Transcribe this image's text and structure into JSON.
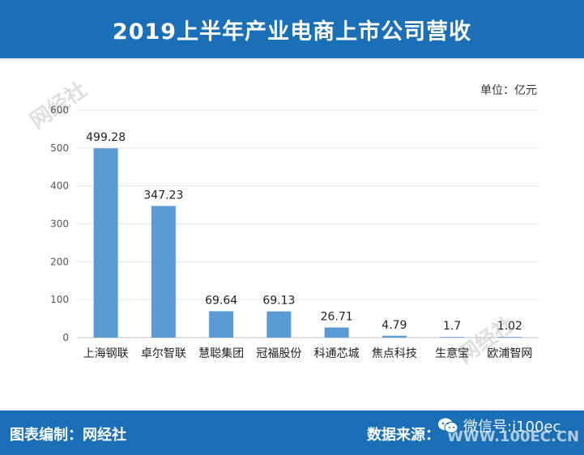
{
  "header": {
    "title": "2019上半年产业电商上市公司营收"
  },
  "unit": "单位：亿元",
  "watermarks": {
    "brand": "网经社",
    "site": "WWW.100EC.CN"
  },
  "footer": {
    "left": "图表编制：网经社",
    "right": "数据来源：",
    "url": "WWW.100EC.CN",
    "wechat": "微信号:i100ec",
    "icon": "wechat-icon"
  },
  "colors": {
    "header_bg": "#1a6fb6",
    "bar": "#5b9bd5"
  },
  "chart_data": {
    "type": "bar",
    "title": "2019上半年产业电商上市公司营收",
    "unit": "单位：亿元",
    "categories": [
      "上海钢联",
      "卓尔智联",
      "慧聪集团",
      "冠福股份",
      "科通芯城",
      "焦点科技",
      "生意宝",
      "欧浦智网"
    ],
    "values": [
      499.28,
      347.23,
      69.64,
      69.13,
      26.71,
      4.79,
      1.7,
      1.02
    ],
    "value_labels": [
      "499.28",
      "347.23",
      "69.64",
      "69.13",
      "26.71",
      "4.79",
      "1.7",
      "1.02"
    ],
    "yticks": [
      0,
      100,
      200,
      300,
      400,
      500,
      600
    ],
    "ylim": [
      0,
      600
    ],
    "grid": true,
    "legend": "none"
  }
}
